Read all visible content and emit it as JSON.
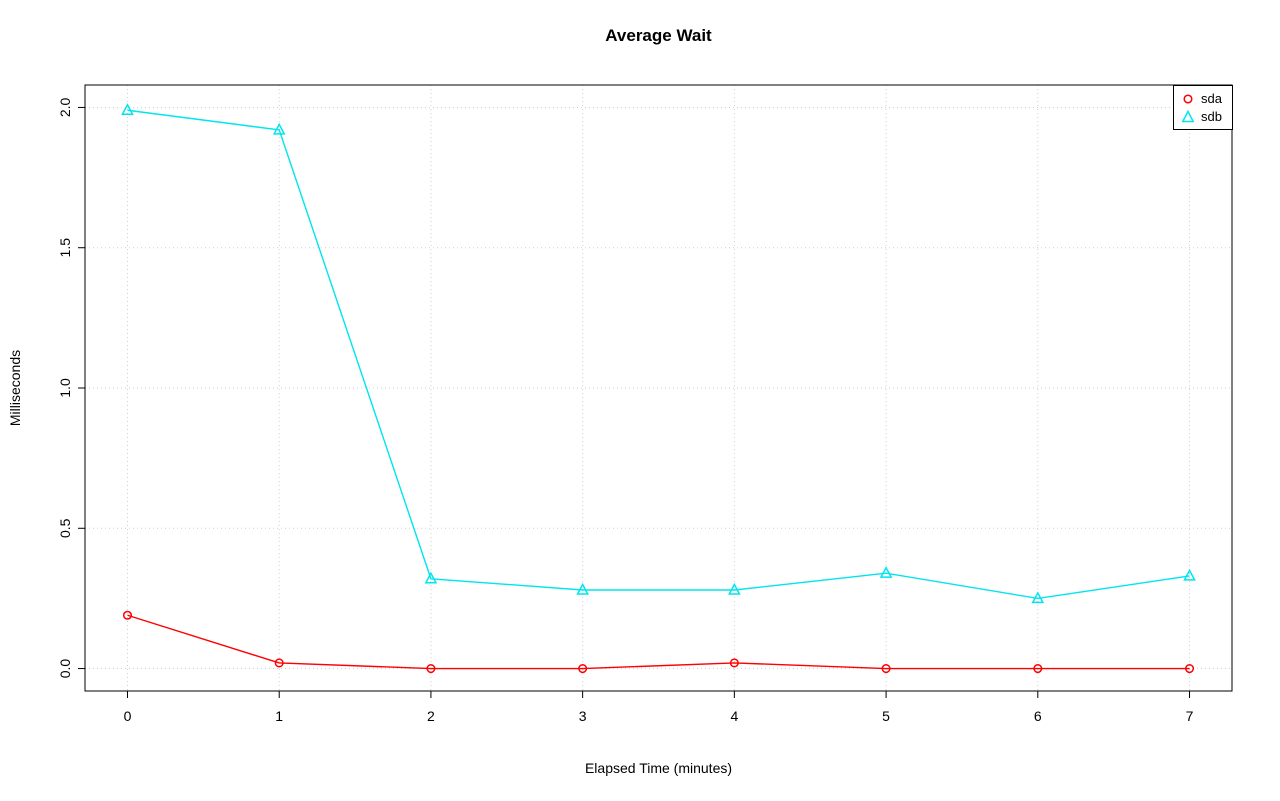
{
  "chart_data": {
    "type": "line",
    "title": "Average Wait",
    "xlabel": "Elapsed Time (minutes)",
    "ylabel": "Milliseconds",
    "x": [
      0,
      1,
      2,
      3,
      4,
      5,
      6,
      7
    ],
    "xlim": [
      0,
      7
    ],
    "ylim": [
      0,
      2
    ],
    "x_ticks": [
      0,
      1,
      2,
      3,
      4,
      5,
      6,
      7
    ],
    "x_tick_labels": [
      "0",
      "1",
      "2",
      "3",
      "4",
      "5",
      "6",
      "7"
    ],
    "y_ticks": [
      0,
      0.5,
      1,
      1.5,
      2
    ],
    "y_tick_labels": [
      "0.0",
      "0.5",
      "1.0",
      "1.5",
      "2.0"
    ],
    "grid": true,
    "legend_position": "top-right",
    "series": [
      {
        "name": "sda",
        "color": "#ff0000",
        "marker": "circle",
        "values": [
          0.19,
          0.02,
          0.0,
          0.0,
          0.02,
          0.0,
          0.0,
          0.0
        ]
      },
      {
        "name": "sdb",
        "color": "#00e5ee",
        "marker": "triangle",
        "values": [
          1.99,
          1.92,
          0.32,
          0.28,
          0.28,
          0.34,
          0.25,
          0.33
        ]
      }
    ]
  }
}
